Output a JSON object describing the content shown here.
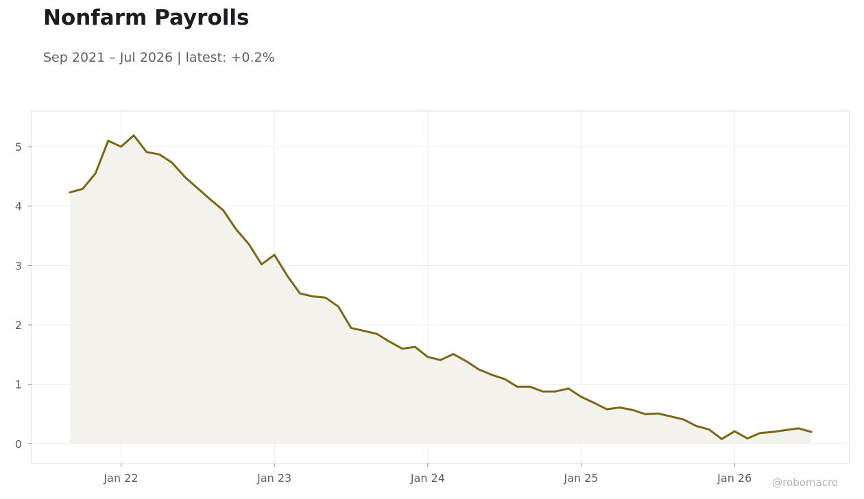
{
  "title": "Nonfarm Payrolls",
  "subtitle": "Sep 2021 – Jul 2026 | latest: +0.2%",
  "watermark": "@robomacro",
  "colors": {
    "line": "#7a6718",
    "fill": "#f4f2ec",
    "grid": "#ececec",
    "frame": "#dddddd"
  },
  "chart_data": {
    "type": "area",
    "xlim": [
      "2021-06",
      "2026-10"
    ],
    "ylim": [
      -0.33,
      5.6
    ],
    "x_ticks": [
      "2022-01",
      "2023-01",
      "2024-01",
      "2025-01",
      "2026-01"
    ],
    "x_tick_labels": [
      "Jan 22",
      "Jan 23",
      "Jan 24",
      "Jan 25",
      "Jan 26"
    ],
    "y_ticks": [
      0,
      1,
      2,
      3,
      4,
      5
    ],
    "y_tick_labels": [
      "0",
      "1",
      "2",
      "3",
      "4",
      "5"
    ],
    "grid": true,
    "series": [
      {
        "x": [
          "2021-09",
          "2021-10",
          "2021-11",
          "2021-12",
          "2022-01",
          "2022-02",
          "2022-03",
          "2022-04",
          "2022-05",
          "2022-06",
          "2022-07",
          "2022-08",
          "2022-09",
          "2022-10",
          "2022-11",
          "2022-12",
          "2023-01",
          "2023-02",
          "2023-03",
          "2023-04",
          "2023-05",
          "2023-06",
          "2023-07",
          "2023-08",
          "2023-09",
          "2023-10",
          "2023-11",
          "2023-12",
          "2024-01",
          "2024-02",
          "2024-03",
          "2024-04",
          "2024-05",
          "2024-06",
          "2024-07",
          "2024-08",
          "2024-09",
          "2024-10",
          "2024-11",
          "2024-12",
          "2025-01",
          "2025-02",
          "2025-03",
          "2025-04",
          "2025-05",
          "2025-06",
          "2025-07",
          "2025-08",
          "2025-09",
          "2025-10",
          "2025-11",
          "2025-12",
          "2026-01",
          "2026-02",
          "2026-03",
          "2026-04",
          "2026-05",
          "2026-06",
          "2026-07"
        ],
        "values": [
          4.23,
          4.29,
          4.55,
          5.1,
          5.0,
          5.19,
          4.91,
          4.87,
          4.73,
          4.49,
          4.3,
          4.11,
          3.93,
          3.61,
          3.36,
          3.02,
          3.18,
          2.83,
          2.53,
          2.48,
          2.46,
          2.31,
          1.95,
          1.9,
          1.85,
          1.72,
          1.6,
          1.63,
          1.46,
          1.41,
          1.51,
          1.39,
          1.25,
          1.16,
          1.09,
          0.96,
          0.96,
          0.88,
          0.88,
          0.93,
          0.79,
          0.69,
          0.58,
          0.61,
          0.57,
          0.5,
          0.51,
          0.46,
          0.41,
          0.3,
          0.24,
          0.08,
          0.21,
          0.09,
          0.18,
          0.2,
          0.23,
          0.26,
          0.2
        ]
      }
    ]
  }
}
